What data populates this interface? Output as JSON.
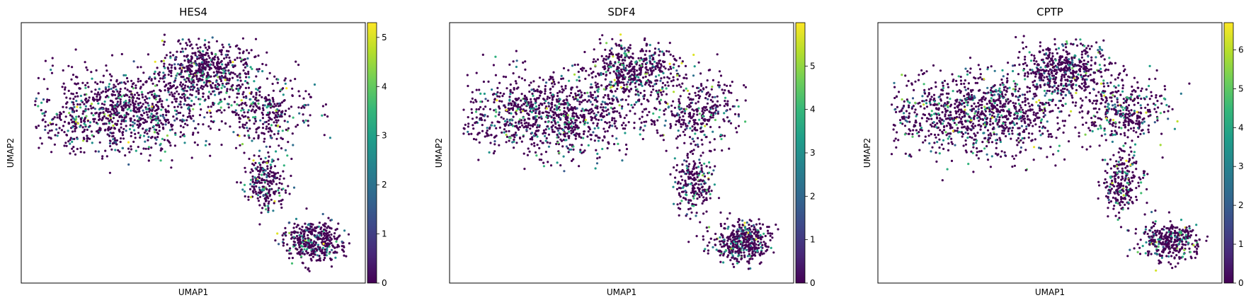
{
  "figure": {
    "background": "#ffffff",
    "colormap": "viridis",
    "colormap_stops": [
      "#440154",
      "#482878",
      "#3e4989",
      "#31688e",
      "#26828e",
      "#1f9e89",
      "#35b779",
      "#6ece58",
      "#b5de2b",
      "#fde725"
    ]
  },
  "chart_data": [
    {
      "type": "scatter",
      "title": "HES4",
      "xlabel": "UMAP1",
      "ylabel": "UMAP2",
      "colorbar": {
        "range": [
          0,
          5.3
        ],
        "ticks": [
          "0",
          "1",
          "2",
          "3",
          "4",
          "5"
        ]
      },
      "grid": false,
      "legend": "none"
    },
    {
      "type": "scatter",
      "title": "SDF4",
      "xlabel": "UMAP1",
      "ylabel": "UMAP2",
      "colorbar": {
        "range": [
          0,
          6
        ],
        "ticks": [
          "0",
          "1",
          "2",
          "3",
          "4",
          "5"
        ]
      },
      "grid": false,
      "legend": "none"
    },
    {
      "type": "scatter",
      "title": "CPTP",
      "xlabel": "UMAP1",
      "ylabel": "UMAP2",
      "colorbar": {
        "range": [
          0,
          6.7
        ],
        "ticks": [
          "0",
          "1",
          "2",
          "3",
          "4",
          "5",
          "6"
        ]
      },
      "grid": false,
      "legend": "none"
    }
  ]
}
